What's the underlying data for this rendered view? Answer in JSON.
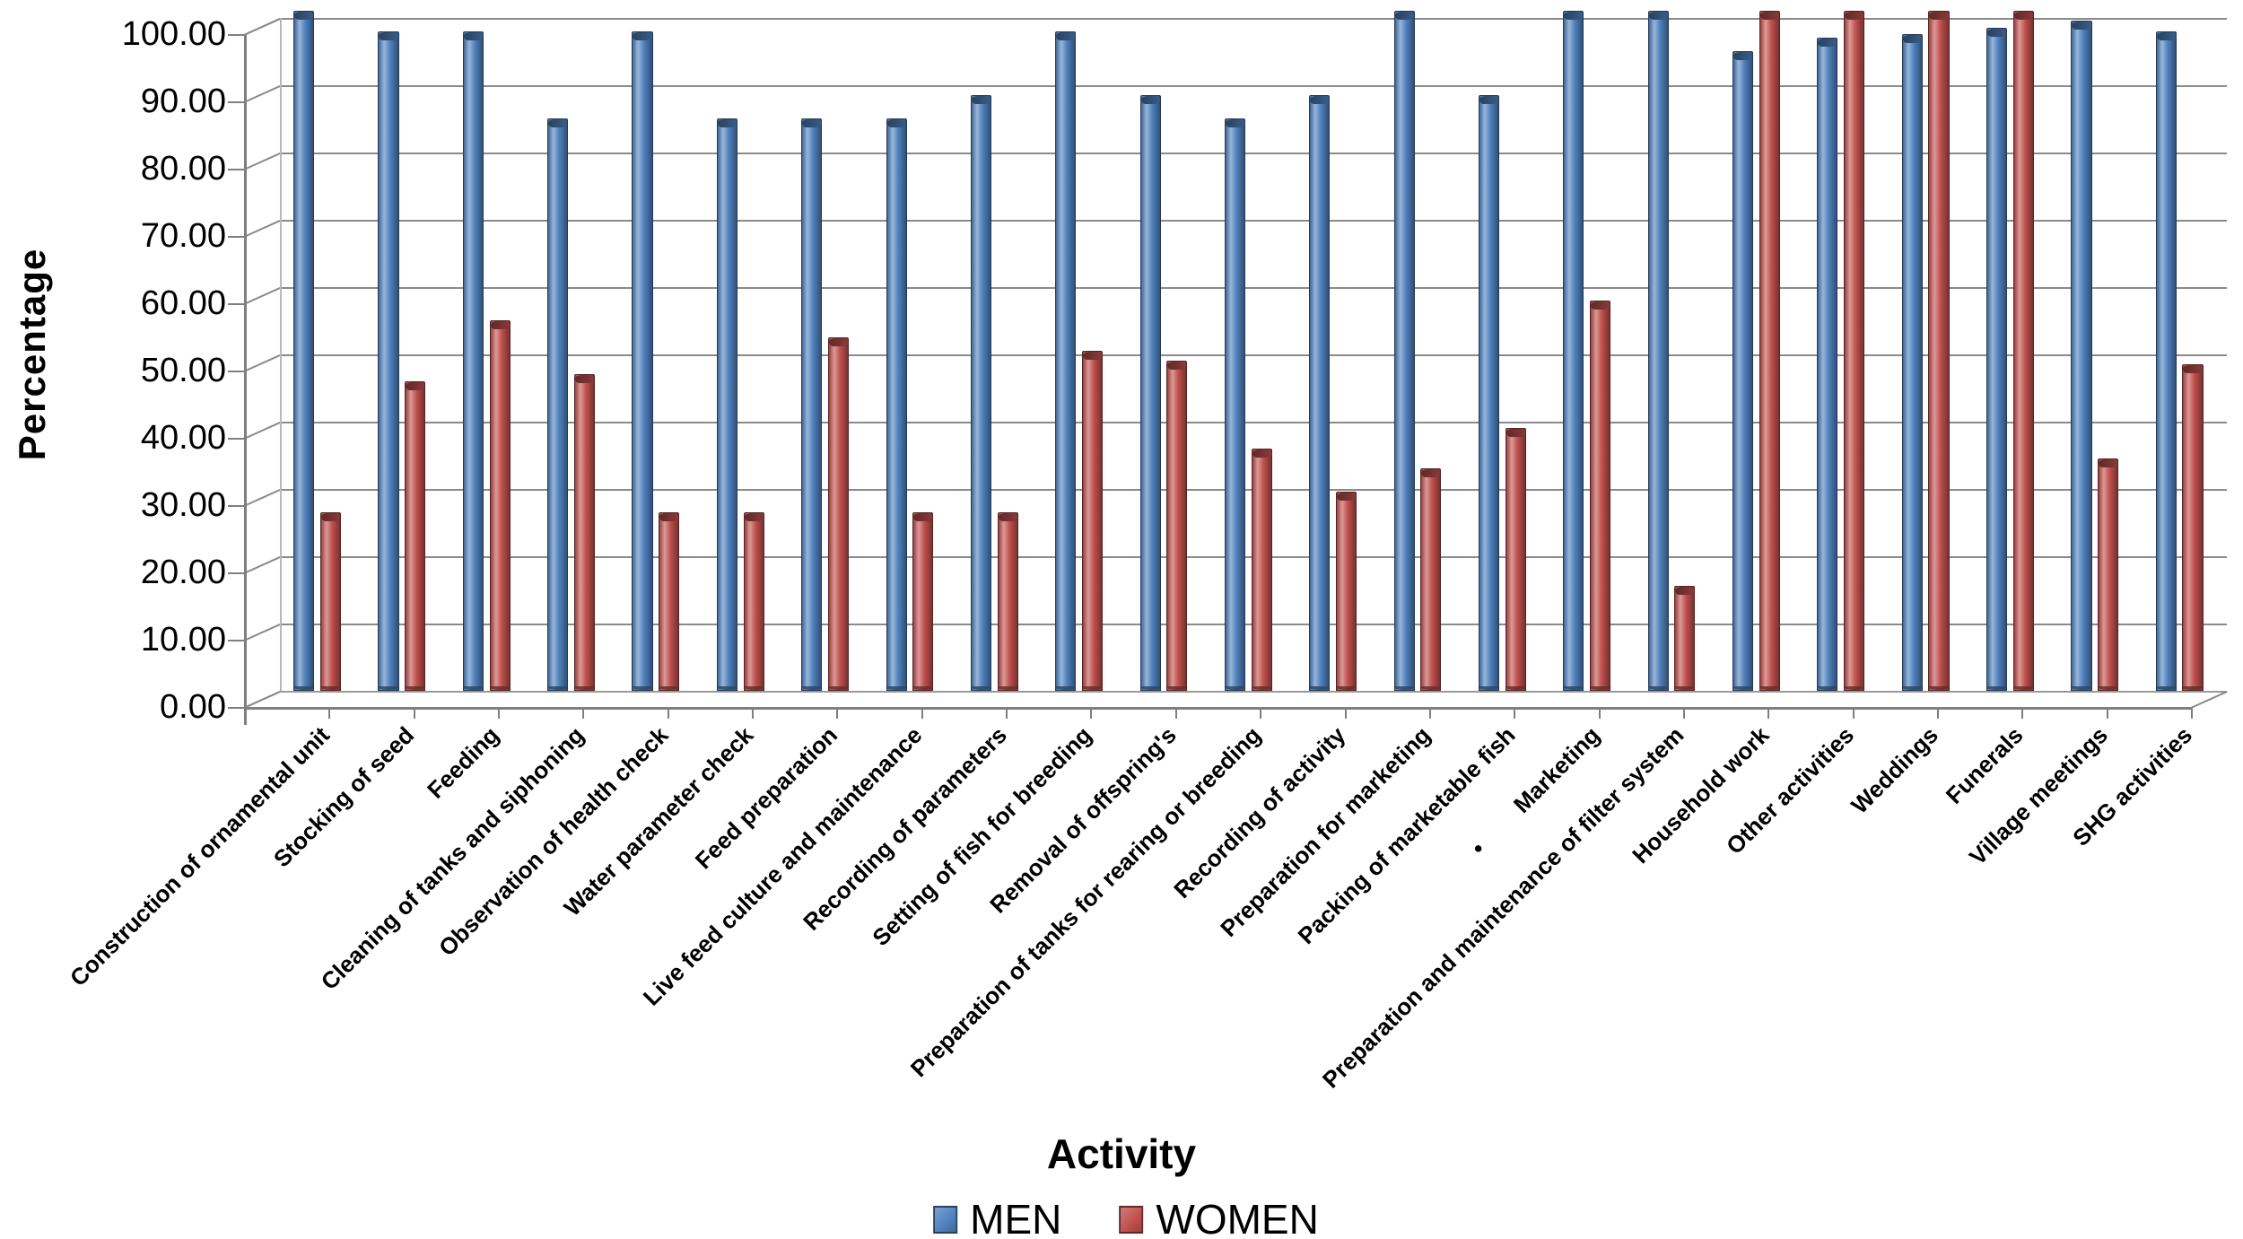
{
  "chart_data": {
    "type": "bar",
    "title": "",
    "xlabel": "Activity",
    "ylabel": "Percentage",
    "ylim": [
      0,
      100
    ],
    "ytick_step": 10,
    "ytick_labels": [
      "100.00",
      "90.00",
      "80.00",
      "70.00",
      "60.00",
      "50.00",
      "40.00",
      "30.00",
      "20.00",
      "10.00",
      "0.00"
    ],
    "grid": true,
    "legend_position": "bottom",
    "categories": [
      "Construction of ornamental unit",
      "Stocking of seed",
      "Feeding",
      "Cleaning of tanks and siphoning",
      "Observation of health check",
      "Water parameter check",
      "Feed preparation",
      "Live feed culture and maintenance",
      "Recording of parameters",
      "Setting of fish for breeding",
      "Removal of offspring's",
      "Preparation of tanks for rearing or breeding",
      "Recording of activity",
      "Preparation for marketing",
      "Packing of marketable fish",
      "•        Marketing",
      "Preparation and maintenance of filter system",
      "Household work",
      "Other activities",
      "Weddings",
      "Funerals",
      "Village meetings",
      "SHG activities"
    ],
    "series": [
      {
        "name": "MEN",
        "color": "#4F81BD",
        "values": [
          100,
          97,
          97,
          84,
          97,
          84,
          84,
          84,
          87.5,
          97,
          87.5,
          84,
          87.5,
          100,
          87.5,
          100,
          100,
          94,
          96,
          96.5,
          97.5,
          98.5,
          97
        ]
      },
      {
        "name": "WOMEN",
        "color": "#C0504D",
        "values": [
          25.5,
          45,
          54,
          46,
          25.5,
          25.5,
          51.5,
          25.5,
          25.5,
          49.5,
          48,
          35,
          28.5,
          32,
          38,
          57,
          14.5,
          100,
          100,
          100,
          100,
          33.5,
          47.5
        ]
      }
    ]
  },
  "axes": {
    "x_title": "Activity",
    "y_title": "Percentage"
  },
  "legend": {
    "men_label": "MEN",
    "women_label": "WOMEN"
  },
  "style_colors": {
    "gridline": "#8a8a8a",
    "axis": "#7f7f7f",
    "text": "#000000"
  }
}
